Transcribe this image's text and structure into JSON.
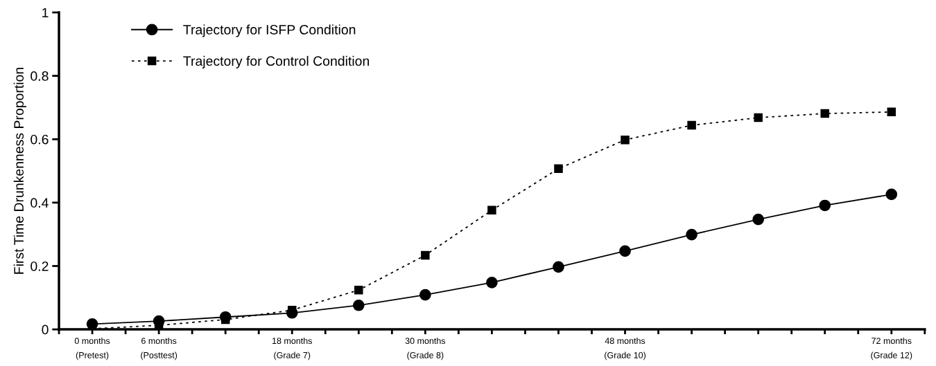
{
  "chart_data": {
    "type": "line",
    "ylabel": "First Time Drunkenness Proportion",
    "x": [
      0,
      6,
      12,
      18,
      24,
      30,
      36,
      42,
      48,
      54,
      60,
      66,
      72
    ],
    "xlim": [
      -3,
      75
    ],
    "xticks": [
      {
        "value": -3,
        "label": null
      },
      {
        "value": 0,
        "label": "0 months\n(Pretest)"
      },
      {
        "value": 3,
        "label": null
      },
      {
        "value": 6,
        "label": "6 months\n(Posttest)"
      },
      {
        "value": 9,
        "label": null
      },
      {
        "value": 12,
        "label": null
      },
      {
        "value": 15,
        "label": null
      },
      {
        "value": 18,
        "label": "18 months\n(Grade 7)"
      },
      {
        "value": 21,
        "label": null
      },
      {
        "value": 24,
        "label": null
      },
      {
        "value": 27,
        "label": null
      },
      {
        "value": 30,
        "label": "30 months\n(Grade 8)"
      },
      {
        "value": 33,
        "label": null
      },
      {
        "value": 36,
        "label": null
      },
      {
        "value": 39,
        "label": null
      },
      {
        "value": 42,
        "label": null
      },
      {
        "value": 45,
        "label": null
      },
      {
        "value": 48,
        "label": "48 months\n(Grade 10)"
      },
      {
        "value": 51,
        "label": null
      },
      {
        "value": 54,
        "label": null
      },
      {
        "value": 57,
        "label": null
      },
      {
        "value": 60,
        "label": null
      },
      {
        "value": 63,
        "label": null
      },
      {
        "value": 66,
        "label": null
      },
      {
        "value": 69,
        "label": null
      },
      {
        "value": 72,
        "label": "72 months\n(Grade 12)"
      },
      {
        "value": 75,
        "label": null
      }
    ],
    "ylim": [
      0,
      1
    ],
    "yticks": [
      0,
      {
        "value": 0.2,
        "label": "0.2"
      },
      {
        "value": 0.4,
        "label": "0.4"
      },
      {
        "value": 0.6,
        "label": "0.6"
      },
      {
        "value": 0.8,
        "label": "0.8"
      },
      1
    ],
    "grid": false,
    "legend": "top left",
    "series": [
      {
        "name": "Trajectory for ISFP Condition",
        "color": "#000000",
        "marker": "circle",
        "line_style": "solid",
        "values": [
          0.017,
          0.026,
          0.039,
          0.052,
          0.076,
          0.109,
          0.148,
          0.197,
          0.247,
          0.299,
          0.347,
          0.391,
          0.426
        ]
      },
      {
        "name": "Trajectory for Control Condition",
        "color": "#000000",
        "marker": "square",
        "line_style": "dotted",
        "values": [
          0.002,
          0.013,
          0.031,
          0.061,
          0.124,
          0.234,
          0.376,
          0.507,
          0.598,
          0.644,
          0.668,
          0.681,
          0.686
        ]
      }
    ]
  }
}
